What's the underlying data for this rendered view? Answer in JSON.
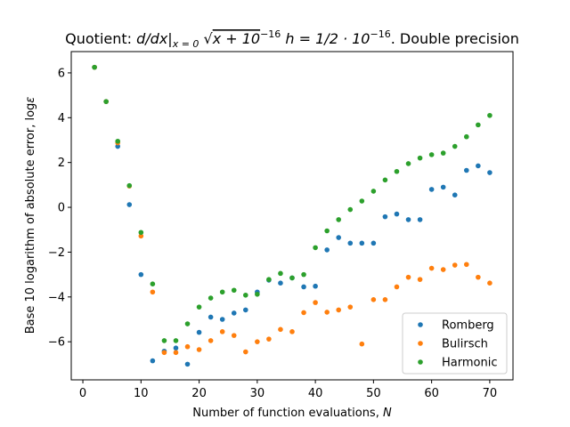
{
  "chart_data": {
    "type": "scatter",
    "title_parts": {
      "prefix": "Quotient: ",
      "math": "d/dx|",
      "sub": "x = 0",
      "expr": "x + 10",
      "exp1": "−16",
      "mid": "  h = 1/2 · 10",
      "exp2": "−16",
      "suffix": ". Double precision"
    },
    "xlabel_text": "Number of function evaluations, ",
    "xlabel_var": "N",
    "ylabel": "Base 10 logarithm of absolute error, log",
    "ylabel_var": "ε",
    "xlim": [
      -2,
      74
    ],
    "ylim": [
      -7.7,
      6.95
    ],
    "xticks": [
      0,
      10,
      20,
      30,
      40,
      50,
      60,
      70
    ],
    "yticks": [
      -6,
      -4,
      -2,
      0,
      2,
      4,
      6
    ],
    "ytick_labels": [
      "−6",
      "−4",
      "−2",
      "0",
      "2",
      "4",
      "6"
    ],
    "legend_position": "lower-right",
    "x": [
      2,
      4,
      6,
      8,
      10,
      12,
      14,
      16,
      18,
      20,
      22,
      24,
      26,
      28,
      30,
      32,
      34,
      36,
      38,
      40,
      42,
      44,
      46,
      48,
      50,
      52,
      54,
      56,
      58,
      60,
      62,
      64,
      66,
      68,
      70
    ],
    "series": [
      {
        "name": "Romberg",
        "color": "#1f77b4",
        "values": [
          6.25,
          4.72,
          2.72,
          0.12,
          -3.0,
          -6.85,
          -6.42,
          -6.28,
          -7.0,
          -5.58,
          -4.9,
          -5.0,
          -4.72,
          -4.58,
          -3.78,
          -3.25,
          -3.38,
          -3.15,
          -3.55,
          -3.52,
          -1.9,
          -1.35,
          -1.6,
          -1.6,
          -1.6,
          -0.42,
          -0.3,
          -0.55,
          -0.55,
          0.8,
          0.9,
          0.55,
          1.65,
          1.85,
          1.55
        ]
      },
      {
        "name": "Bulirsch",
        "color": "#ff7f0e",
        "values": [
          6.25,
          4.72,
          2.88,
          0.95,
          -1.28,
          -3.78,
          -6.48,
          -6.48,
          -6.22,
          -6.35,
          -5.95,
          -5.55,
          -5.72,
          -6.45,
          -6.0,
          -5.88,
          -5.45,
          -5.55,
          -4.7,
          -4.25,
          -4.68,
          -4.58,
          -4.45,
          -6.1,
          -4.12,
          -4.12,
          -3.55,
          -3.12,
          -3.22,
          -2.72,
          -2.78,
          -2.58,
          -2.55,
          -3.12,
          -3.38
        ]
      },
      {
        "name": "Harmonic",
        "color": "#2ca02c",
        "values": [
          6.25,
          4.72,
          2.95,
          0.97,
          -1.12,
          -3.42,
          -5.95,
          -5.95,
          -5.2,
          -4.45,
          -4.05,
          -3.78,
          -3.7,
          -3.92,
          -3.88,
          -3.22,
          -2.95,
          -3.15,
          -3.0,
          -1.8,
          -1.05,
          -0.55,
          -0.1,
          0.28,
          0.72,
          1.22,
          1.6,
          1.95,
          2.2,
          2.35,
          2.42,
          2.72,
          3.15,
          3.68,
          4.1
        ]
      }
    ]
  }
}
